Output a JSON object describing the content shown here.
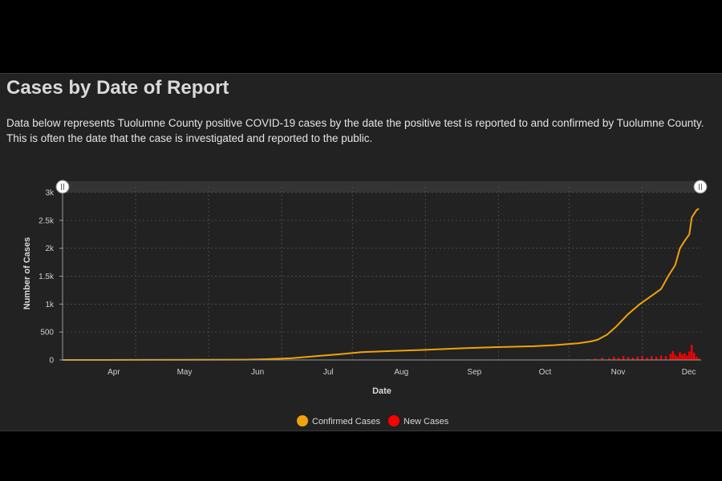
{
  "header": {
    "title": "Cases by Date of Report",
    "description": "Data below represents Tuolumne County positive COVID-19 cases by the date the positive test is reported to and confirmed by Tuolumne County. This is often the date that the case is investigated and reported to the public."
  },
  "colors": {
    "confirmed": "#f0a30a",
    "new": "#ff0000",
    "background": "#222222",
    "grid": "#4a4a4a"
  },
  "chart_data": {
    "type": "line",
    "xlabel": "Date",
    "ylabel": "Number of Cases",
    "x_range": [
      "2020-03-15",
      "2020-12-11"
    ],
    "ylim": [
      0,
      3000
    ],
    "y_ticks": [
      {
        "value": 0,
        "label": "0"
      },
      {
        "value": 500,
        "label": "500"
      },
      {
        "value": 1000,
        "label": "1k"
      },
      {
        "value": 1500,
        "label": "1.5k"
      },
      {
        "value": 2000,
        "label": "2k"
      },
      {
        "value": 2500,
        "label": "2.5k"
      },
      {
        "value": 3000,
        "label": "3k"
      }
    ],
    "x_ticks": [
      {
        "date": "2020-04-01",
        "label": "Apr"
      },
      {
        "date": "2020-05-01",
        "label": "May"
      },
      {
        "date": "2020-06-01",
        "label": "Jun"
      },
      {
        "date": "2020-07-01",
        "label": "Jul"
      },
      {
        "date": "2020-08-01",
        "label": "Aug"
      },
      {
        "date": "2020-09-01",
        "label": "Sep"
      },
      {
        "date": "2020-10-01",
        "label": "Oct"
      },
      {
        "date": "2020-11-01",
        "label": "Nov"
      },
      {
        "date": "2020-12-01",
        "label": "Dec"
      }
    ],
    "grid": true,
    "legend_position": "bottom-center",
    "series": [
      {
        "name": "Confirmed Cases",
        "kind": "line",
        "points": [
          [
            "2020-03-15",
            0
          ],
          [
            "2020-04-15",
            2
          ],
          [
            "2020-05-15",
            4
          ],
          [
            "2020-06-01",
            6
          ],
          [
            "2020-06-10",
            15
          ],
          [
            "2020-06-20",
            30
          ],
          [
            "2020-07-01",
            70
          ],
          [
            "2020-07-10",
            100
          ],
          [
            "2020-07-20",
            140
          ],
          [
            "2020-08-01",
            160
          ],
          [
            "2020-08-15",
            180
          ],
          [
            "2020-09-01",
            210
          ],
          [
            "2020-09-15",
            230
          ],
          [
            "2020-10-01",
            245
          ],
          [
            "2020-10-10",
            265
          ],
          [
            "2020-10-20",
            300
          ],
          [
            "2020-10-25",
            330
          ],
          [
            "2020-10-28",
            360
          ],
          [
            "2020-11-01",
            450
          ],
          [
            "2020-11-05",
            600
          ],
          [
            "2020-11-10",
            820
          ],
          [
            "2020-11-15",
            1000
          ],
          [
            "2020-11-20",
            1150
          ],
          [
            "2020-11-24",
            1270
          ],
          [
            "2020-11-27",
            1500
          ],
          [
            "2020-11-30",
            1700
          ],
          [
            "2020-12-02",
            2000
          ],
          [
            "2020-12-04",
            2130
          ],
          [
            "2020-12-06",
            2250
          ],
          [
            "2020-12-07",
            2550
          ],
          [
            "2020-12-09",
            2680
          ],
          [
            "2020-12-10",
            2710
          ]
        ]
      },
      {
        "name": "New Cases",
        "kind": "bar",
        "points": [
          [
            "2020-07-01",
            5
          ],
          [
            "2020-07-15",
            6
          ],
          [
            "2020-08-01",
            4
          ],
          [
            "2020-08-20",
            5
          ],
          [
            "2020-09-10",
            4
          ],
          [
            "2020-10-01",
            5
          ],
          [
            "2020-10-15",
            6
          ],
          [
            "2020-10-24",
            15
          ],
          [
            "2020-10-27",
            25
          ],
          [
            "2020-10-30",
            45
          ],
          [
            "2020-11-02",
            30
          ],
          [
            "2020-11-04",
            55
          ],
          [
            "2020-11-06",
            40
          ],
          [
            "2020-11-08",
            70
          ],
          [
            "2020-11-10",
            50
          ],
          [
            "2020-11-12",
            45
          ],
          [
            "2020-11-14",
            60
          ],
          [
            "2020-11-16",
            70
          ],
          [
            "2020-11-18",
            40
          ],
          [
            "2020-11-20",
            65
          ],
          [
            "2020-11-22",
            55
          ],
          [
            "2020-11-24",
            80
          ],
          [
            "2020-11-26",
            70
          ],
          [
            "2020-11-28",
            110
          ],
          [
            "2020-11-29",
            160
          ],
          [
            "2020-11-30",
            90
          ],
          [
            "2020-12-01",
            60
          ],
          [
            "2020-12-02",
            140
          ],
          [
            "2020-12-03",
            100
          ],
          [
            "2020-12-04",
            120
          ],
          [
            "2020-12-05",
            80
          ],
          [
            "2020-12-06",
            150
          ],
          [
            "2020-12-07",
            270
          ],
          [
            "2020-12-08",
            130
          ],
          [
            "2020-12-09",
            60
          ],
          [
            "2020-12-10",
            30
          ]
        ]
      }
    ]
  }
}
